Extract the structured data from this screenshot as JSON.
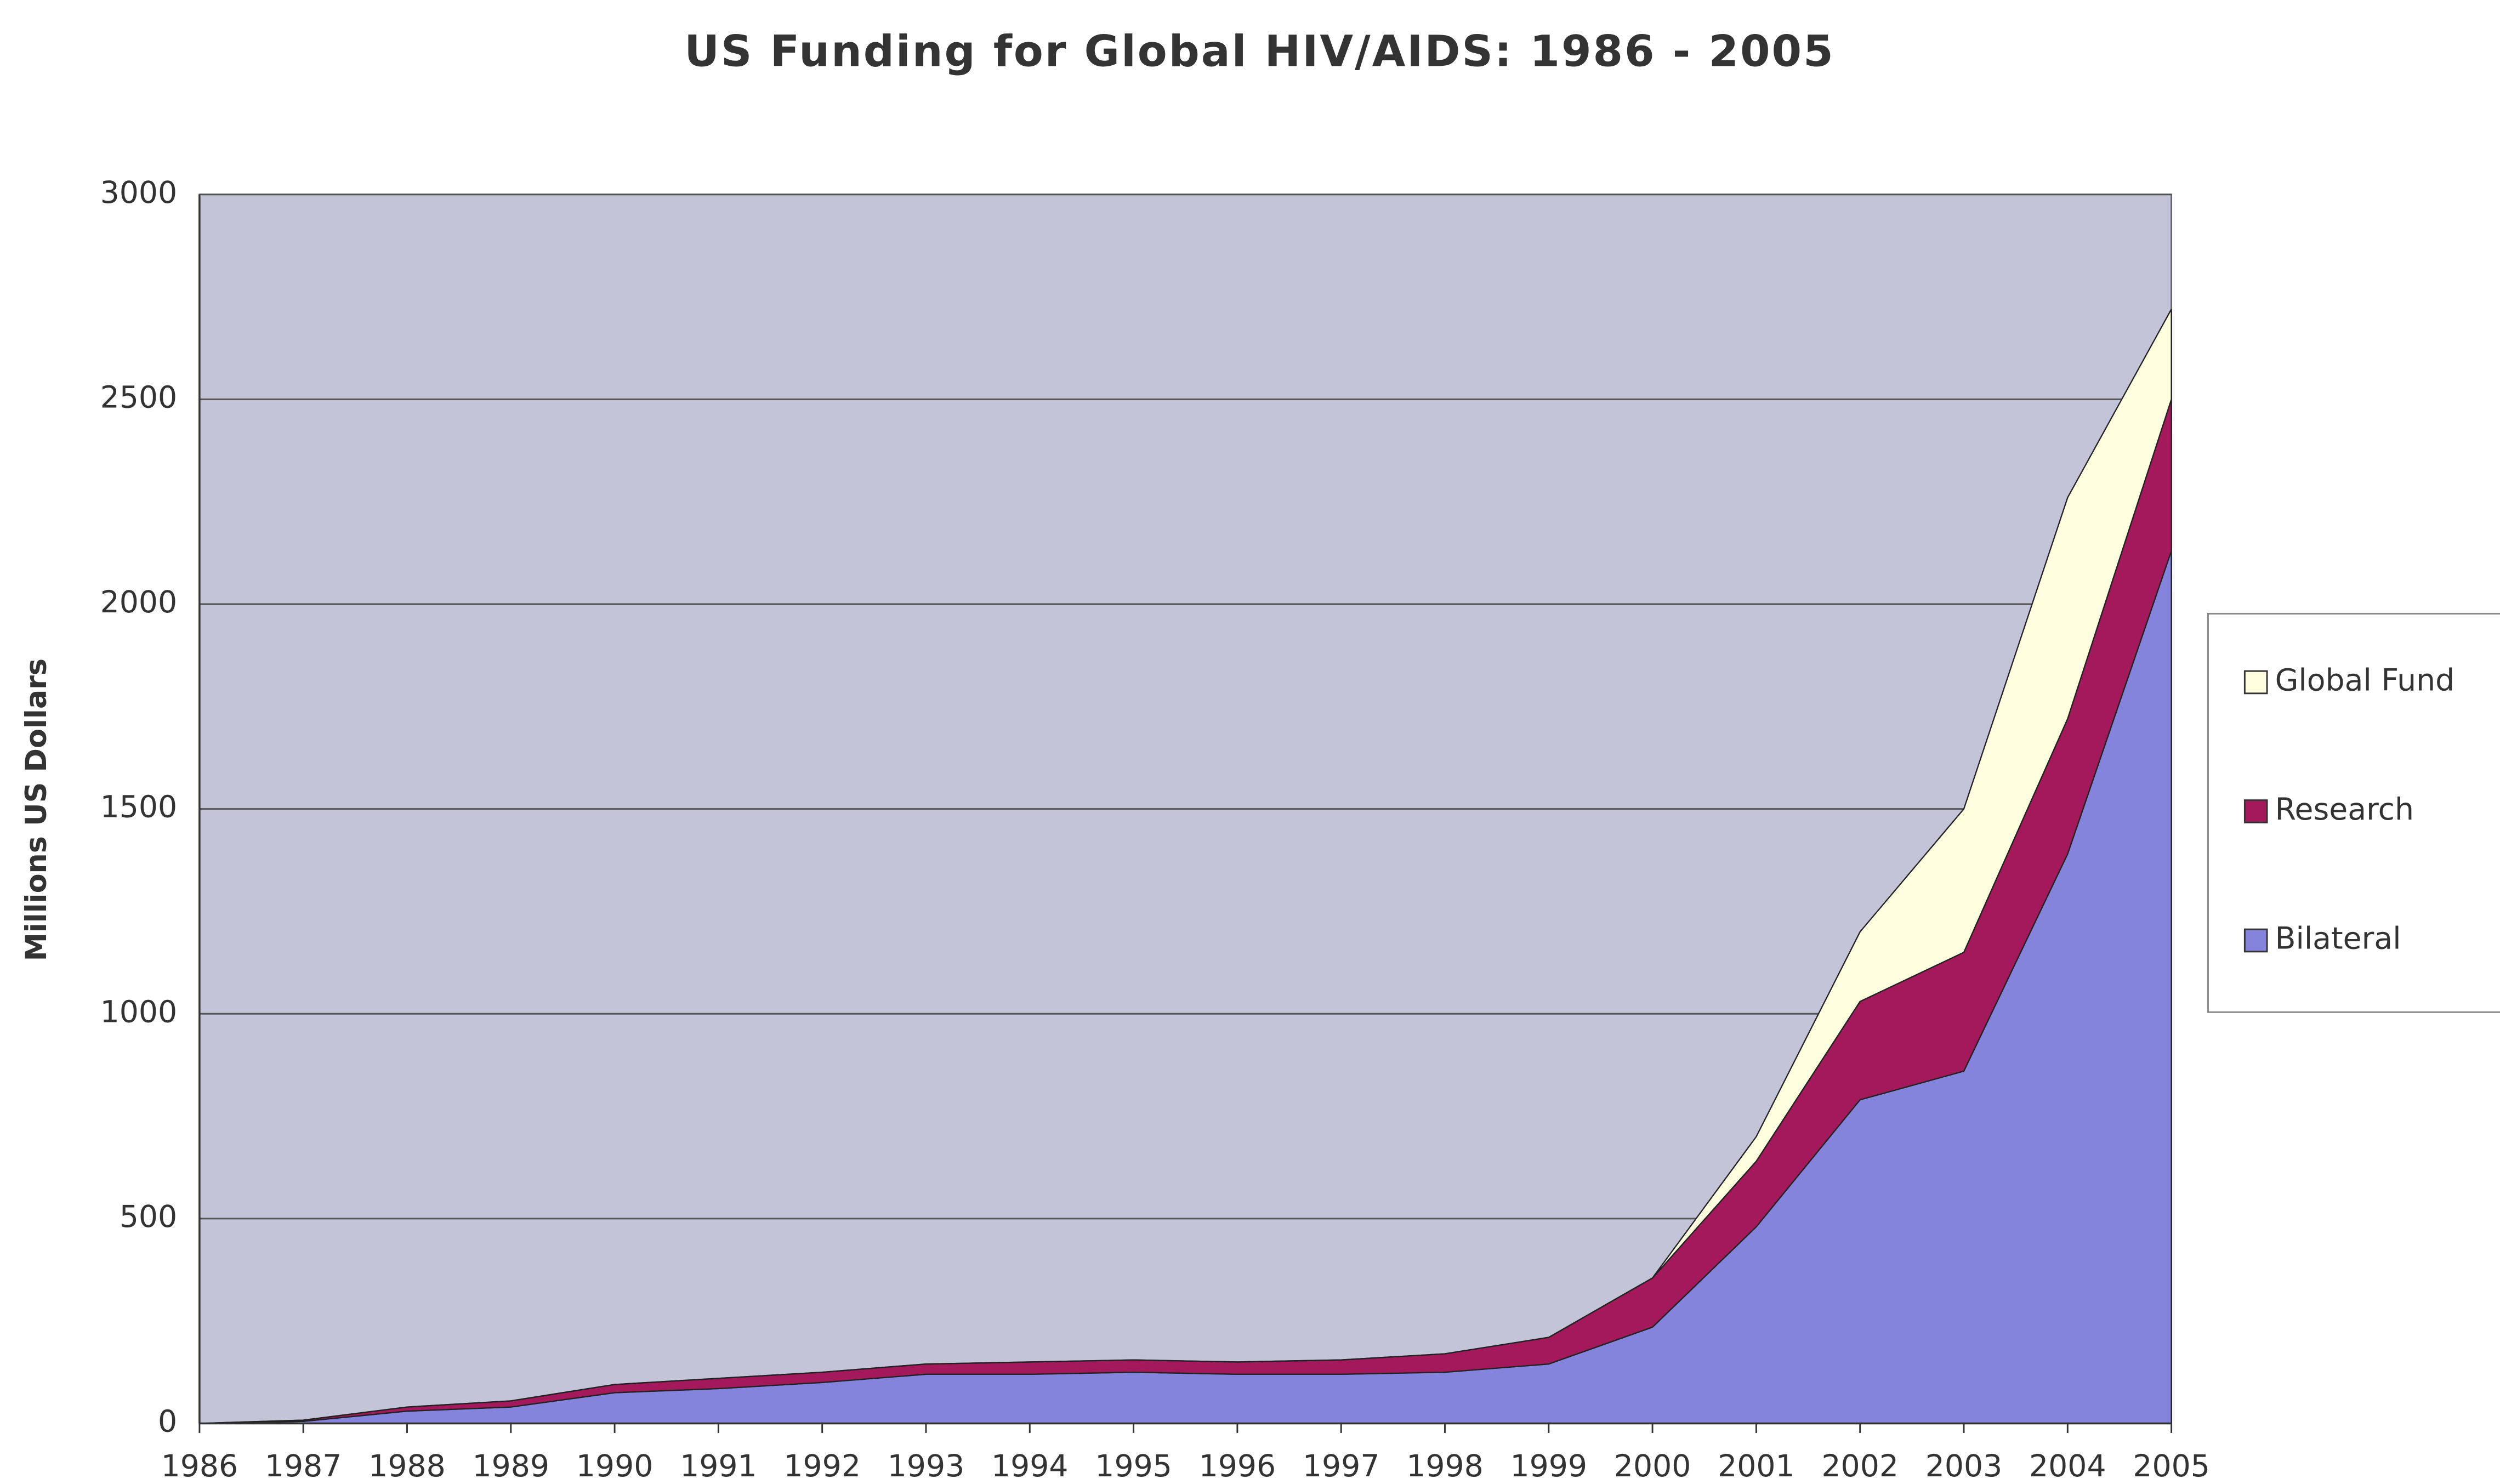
{
  "chart_data": {
    "type": "stacked-area",
    "title": "US Funding for Global HIV/AIDS: 1986 - 2005",
    "y_label": "Millions US Dollars",
    "categories": [
      "1986",
      "1987",
      "1988",
      "1989",
      "1990",
      "1991",
      "1992",
      "1993",
      "1994",
      "1995",
      "1996",
      "1997",
      "1998",
      "1999",
      "2000",
      "2001",
      "2002",
      "2003",
      "2004",
      "2005"
    ],
    "series": [
      {
        "name": "Bilateral",
        "color": "#8484dc",
        "values": [
          0,
          5,
          30,
          40,
          75,
          85,
          100,
          120,
          120,
          125,
          120,
          120,
          125,
          145,
          235,
          480,
          790,
          860,
          1390,
          2130
        ]
      },
      {
        "name": "Research",
        "color": "#a3195b",
        "values": [
          0,
          3,
          10,
          15,
          20,
          25,
          25,
          25,
          30,
          30,
          30,
          35,
          45,
          65,
          120,
          160,
          240,
          290,
          330,
          370
        ]
      },
      {
        "name": "Global Fund",
        "color": "#ffffe0",
        "values": [
          0,
          0,
          0,
          0,
          0,
          0,
          0,
          0,
          0,
          0,
          0,
          0,
          0,
          0,
          0,
          60,
          170,
          350,
          540,
          220
        ]
      }
    ],
    "ylim": [
      0,
      3000
    ],
    "yticks": [
      0,
      500,
      1000,
      1500,
      2000,
      2500,
      3000
    ],
    "grid": true,
    "legend": "right"
  }
}
